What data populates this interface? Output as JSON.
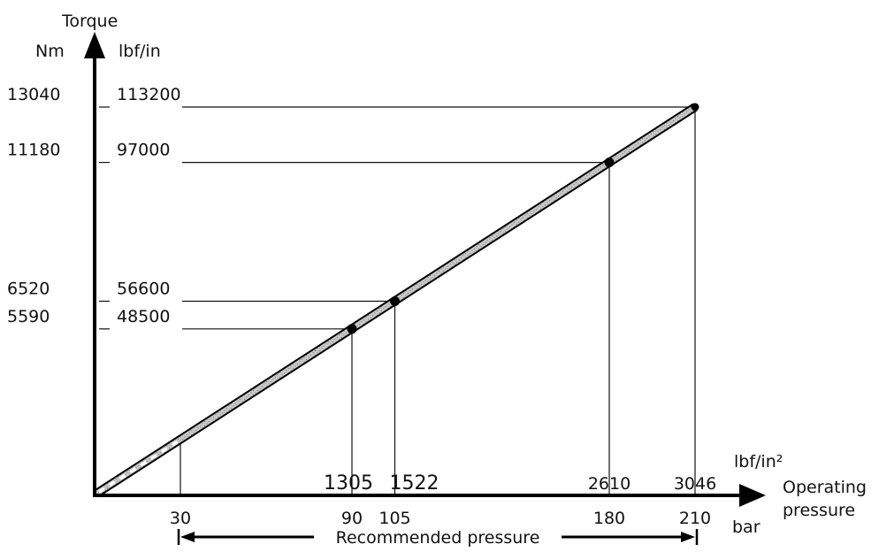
{
  "chart_data": {
    "type": "line",
    "y_title": "Torque",
    "y_units": [
      "Nm",
      "lbf/in"
    ],
    "x_units": [
      "lbf/in²",
      "bar"
    ],
    "x_title_lines": [
      "Operating",
      "pressure"
    ],
    "range_label": "Recommended pressure",
    "recommended_range_bar": [
      30,
      210
    ],
    "xlim_bar": [
      0,
      216
    ],
    "ylim_nm": [
      0,
      14600
    ],
    "series": [
      {
        "points": [
          {
            "bar": 30,
            "psi": "",
            "nm": null,
            "lbf_in": ""
          },
          {
            "bar": 90,
            "psi": "1305",
            "nm": "5590",
            "lbf_in": "48500"
          },
          {
            "bar": 105,
            "psi": "1522",
            "nm": "6520",
            "lbf_in": "56600"
          },
          {
            "bar": 180,
            "psi": "2610",
            "nm": "11180",
            "lbf_in": "97000"
          },
          {
            "bar": 210,
            "psi": "3046",
            "nm": "13040",
            "lbf_in": "113200"
          }
        ]
      }
    ],
    "line_end": {
      "bar": 210,
      "nm": 13040
    },
    "colors": {
      "line": "#000000",
      "line_fill": "#d0d0d0",
      "axis": "#000000"
    }
  }
}
